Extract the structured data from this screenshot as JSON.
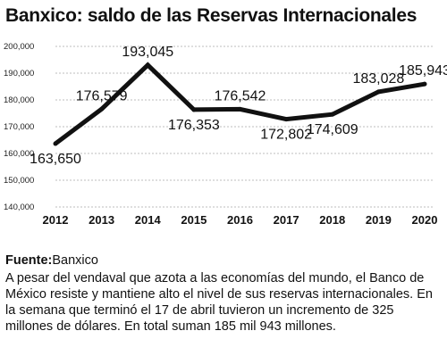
{
  "title": "Banxico: saldo de las Reservas Internacionales",
  "chart_data": {
    "type": "line",
    "x": [
      "2012",
      "2013",
      "2014",
      "2015",
      "2016",
      "2017",
      "2018",
      "2019",
      "2020"
    ],
    "series": [
      {
        "values": [
          163650,
          176579,
          193045,
          176353,
          176542,
          172802,
          174609,
          183028,
          185943
        ]
      }
    ],
    "data_labels": [
      "163,650",
      "176,579",
      "193,045",
      "176,353",
      "176,542",
      "172,802",
      "174,609",
      "183,028",
      "185,943"
    ],
    "y_ticks": [
      140000,
      150000,
      160000,
      170000,
      180000,
      190000,
      200000
    ],
    "y_tick_labels": [
      "140,000",
      "150,000",
      "160,000",
      "170,000",
      "180,000",
      "190,000",
      "200,000"
    ],
    "ylim": [
      140000,
      200000
    ],
    "xlabel": "",
    "ylabel": "",
    "grid": true,
    "line_color": "#111111",
    "grid_color": "#bdbdbd"
  },
  "source": {
    "label": "Fuente:",
    "value": "Banxico"
  },
  "description": "A pesar del vendaval que azota a las economías del mundo, el Banco de México resiste y mantiene alto el nivel de sus reservas internacionales. En la semana que terminó el 17 de abril tuvieron un incremento de 325 millones de dólares. En total suman 185 mil 943 millones."
}
